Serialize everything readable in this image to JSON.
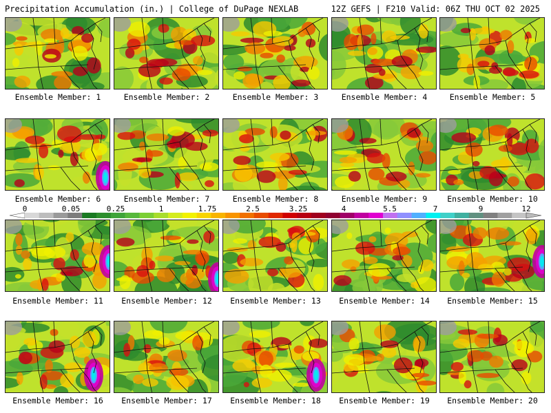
{
  "header": {
    "title": "Precipitation Accumulation (in.) | College of DuPage NEXLAB",
    "run_info": "12Z GEFS | F210 Valid: 06Z THU OCT 02 2025"
  },
  "panels": [
    {
      "label": "Ensemble Member: 1"
    },
    {
      "label": "Ensemble Member: 2"
    },
    {
      "label": "Ensemble Member: 3"
    },
    {
      "label": "Ensemble Member: 4"
    },
    {
      "label": "Ensemble Member: 5"
    },
    {
      "label": "Ensemble Member: 6"
    },
    {
      "label": "Ensemble Member: 7"
    },
    {
      "label": "Ensemble Member: 8"
    },
    {
      "label": "Ensemble Member: 9"
    },
    {
      "label": "Ensemble Member: 10"
    },
    {
      "label": "Ensemble Member: 11"
    },
    {
      "label": "Ensemble Member: 12"
    },
    {
      "label": "Ensemble Member: 13"
    },
    {
      "label": "Ensemble Member: 14"
    },
    {
      "label": "Ensemble Member: 15"
    },
    {
      "label": "Ensemble Member: 16"
    },
    {
      "label": "Ensemble Member: 17"
    },
    {
      "label": "Ensemble Member: 18"
    },
    {
      "label": "Ensemble Member: 19"
    },
    {
      "label": "Ensemble Member: 20"
    }
  ],
  "legend": {
    "tick_labels": [
      "0",
      "0.05",
      "0.25",
      "1",
      "1.75",
      "2.5",
      "3.25",
      "4",
      "5.5",
      "7",
      "9",
      "12"
    ],
    "colors": [
      "#d8d8d8",
      "#bdbdbd",
      "#9a9a9a",
      "#7d7d7d",
      "#1a7a22",
      "#2d8f2d",
      "#3fa43a",
      "#57b83c",
      "#7ccf35",
      "#a8dd2c",
      "#d4ec1e",
      "#f2f200",
      "#f8d400",
      "#f8b400",
      "#f89400",
      "#f07000",
      "#e84c00",
      "#e02800",
      "#d00000",
      "#b80012",
      "#a0001e",
      "#900030",
      "#a00068",
      "#c000a0",
      "#e000d0",
      "#c070f0",
      "#9090ff",
      "#50b0ff",
      "#00f0f0",
      "#40d0c8",
      "#40b0a0",
      "#609080",
      "#808080",
      "#a0a0a0",
      "#c4c4c4"
    ]
  }
}
